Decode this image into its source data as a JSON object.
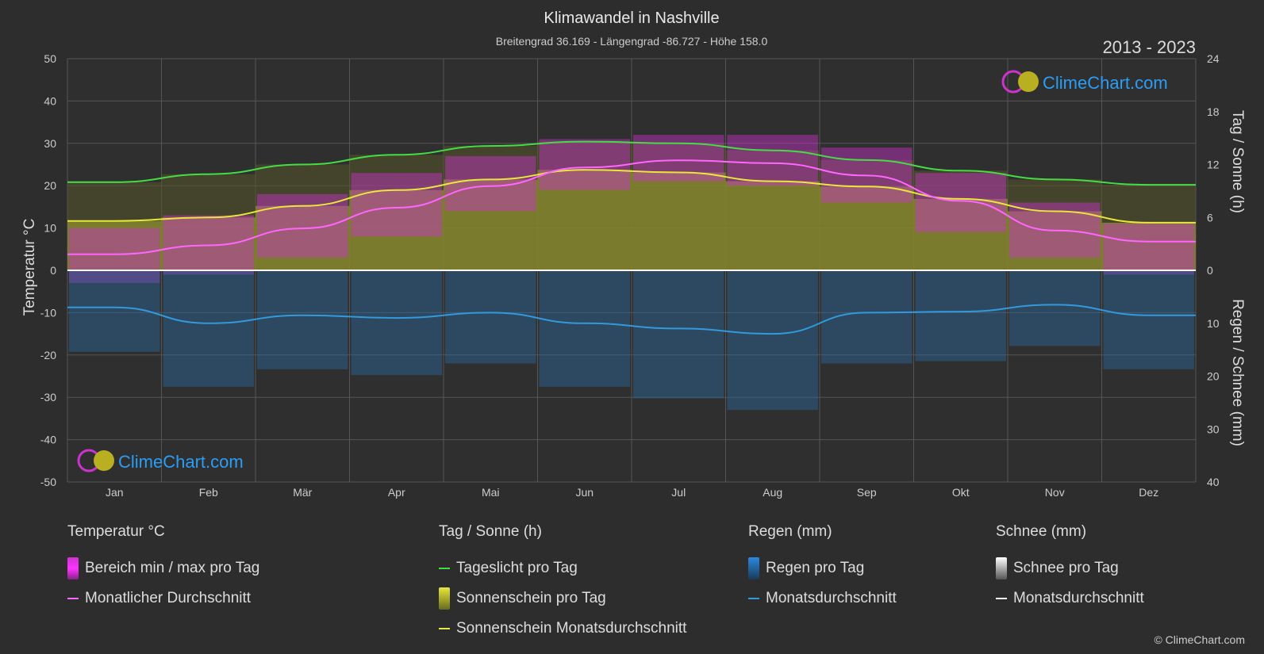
{
  "title": "Klimawandel in Nashville",
  "subtitle": "Breitengrad 36.169 - Längengrad -86.727 - Höhe 158.0",
  "period": "2013 - 2023",
  "brand": "ClimeChart.com",
  "copyright": "© ClimeChart.com",
  "axes": {
    "left_label": "Temperatur °C",
    "right_top_label": "Tag / Sonne (h)",
    "right_bottom_label": "Regen / Schnee (mm)",
    "left_ticks": [
      "50",
      "40",
      "30",
      "20",
      "10",
      "0",
      "-10",
      "-20",
      "-30",
      "-40",
      "-50"
    ],
    "right_top_ticks": [
      "24",
      "18",
      "12",
      "6",
      "0"
    ],
    "right_bottom_ticks": [
      "0",
      "10",
      "20",
      "30",
      "40"
    ]
  },
  "legend": {
    "temp": {
      "header": "Temperatur °C",
      "range": "Bereich min / max pro Tag",
      "avg": "Monatlicher Durchschnitt"
    },
    "sun": {
      "header": "Tag / Sonne (h)",
      "daylight": "Tageslicht pro Tag",
      "sunshine": "Sonnenschein pro Tag",
      "sunavg": "Sonnenschein Monatsdurchschnitt"
    },
    "rain": {
      "header": "Regen (mm)",
      "perday": "Regen pro Tag",
      "avg": "Monatsdurchschnitt"
    },
    "snow": {
      "header": "Schnee (mm)",
      "perday": "Schnee pro Tag",
      "avg": "Monatsdurchschnitt"
    }
  },
  "colors": {
    "background": "#2d2d2d",
    "grid": "#555555",
    "temp_range": "#cc33cc",
    "temp_avg": "#ff66ff",
    "daylight": "#44dd44",
    "sunshine_fill": "#8a8a30",
    "sunshine_avg": "#e8e83a",
    "rain": "#2a6aa0",
    "rain_avg": "#3399dd",
    "snow_avg": "#ffffff",
    "brand": "#2a9df4"
  },
  "chart_data": {
    "type": "area",
    "categories": [
      "Jan",
      "Feb",
      "Mär",
      "Apr",
      "Mai",
      "Jun",
      "Jul",
      "Aug",
      "Sep",
      "Okt",
      "Nov",
      "Dez"
    ],
    "ylim_temp": [
      -50,
      50
    ],
    "ylim_sun_hours": [
      0,
      24
    ],
    "ylim_precip_mm": [
      0,
      40
    ],
    "grid": true,
    "series": [
      {
        "name": "Tageslicht pro Tag",
        "axis": "hours",
        "values": [
          10.0,
          10.9,
          12.0,
          13.1,
          14.1,
          14.6,
          14.4,
          13.6,
          12.5,
          11.3,
          10.3,
          9.7
        ]
      },
      {
        "name": "Sonnenschein Monatsdurchschnitt",
        "axis": "hours",
        "values": [
          5.6,
          6.0,
          7.3,
          9.1,
          10.3,
          11.4,
          11.1,
          10.1,
          9.5,
          8.1,
          6.7,
          5.4
        ]
      },
      {
        "name": "Monatlicher Durchschnitt",
        "axis": "temp",
        "values": [
          3.8,
          5.9,
          9.9,
          14.8,
          19.9,
          24.3,
          26.0,
          25.3,
          22.4,
          16.4,
          9.4,
          6.8
        ]
      },
      {
        "name": "Bereich min / max pro Tag (min)",
        "axis": "temp",
        "values": [
          -3,
          -1,
          3,
          8,
          14,
          19,
          21,
          20,
          16,
          9,
          3,
          -1
        ]
      },
      {
        "name": "Bereich min / max pro Tag (max)",
        "axis": "temp",
        "values": [
          10,
          13,
          18,
          23,
          27,
          31,
          32,
          32,
          29,
          23,
          16,
          11
        ]
      },
      {
        "name": "Monatsdurchschnitt",
        "axis": "precip",
        "values": [
          7.0,
          10.0,
          8.5,
          9.0,
          8.0,
          10.0,
          11.0,
          12.0,
          8.0,
          7.8,
          6.5,
          8.5
        ]
      },
      {
        "name": "Monatsdurchschnitt (Schnee)",
        "axis": "precip",
        "values": [
          0.0,
          0.0,
          0.0,
          0.0,
          0.0,
          0.0,
          0.0,
          0.0,
          0.0,
          0.0,
          0.0,
          0.0
        ]
      }
    ]
  }
}
